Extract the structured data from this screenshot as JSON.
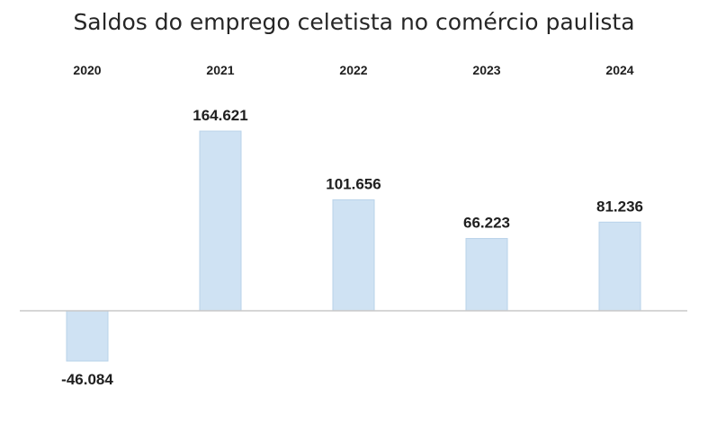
{
  "chart_data": {
    "type": "bar",
    "title": "Saldos do emprego celetista no comércio paulista",
    "categories": [
      "2020",
      "2021",
      "2022",
      "2023",
      "2024"
    ],
    "values": [
      -46084,
      164621,
      101656,
      66223,
      81236
    ],
    "value_labels": [
      "-46.084",
      "164.621",
      "101.656",
      "66.223",
      "81.236"
    ],
    "xlabel": "",
    "ylabel": "",
    "category_axis_position": "top",
    "grid": false,
    "legend": "none",
    "colors": {
      "bar_fill": "#cfe2f3",
      "bar_stroke": "#b9d3ea",
      "axis": "#c8c8c8",
      "text": "#1f1f1f"
    }
  }
}
